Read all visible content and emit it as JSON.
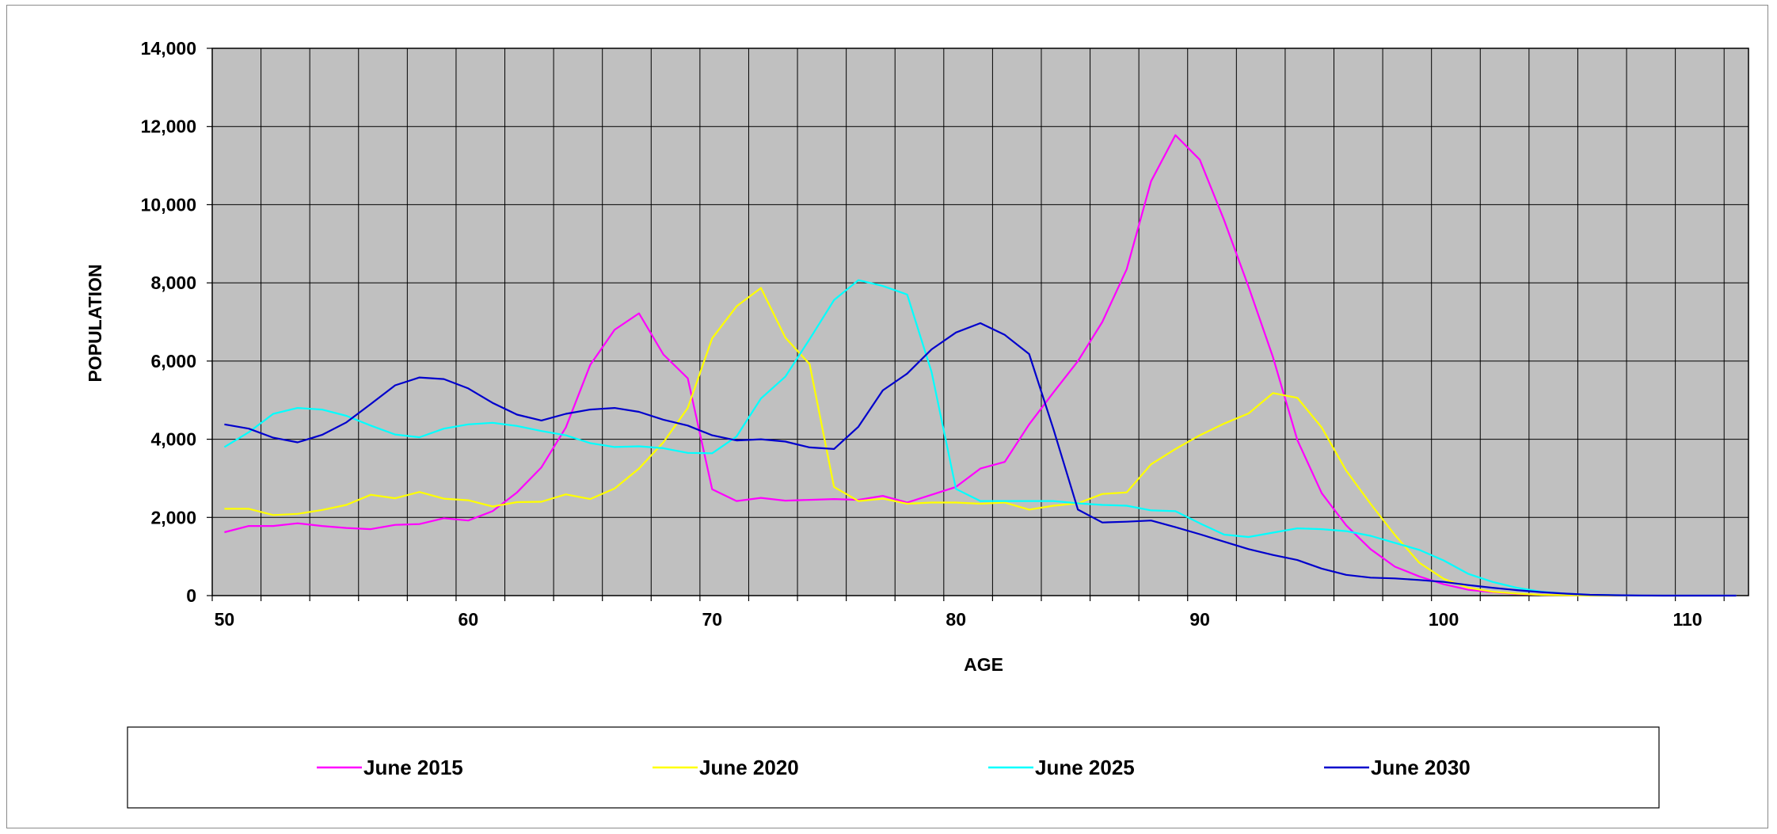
{
  "chart_data": {
    "type": "line",
    "xlabel": "AGE",
    "ylabel": "POPULATION",
    "xlim": [
      49.5,
      112.5
    ],
    "ylim": [
      0,
      14000
    ],
    "x_ticks": [
      50,
      60,
      70,
      80,
      90,
      100,
      110
    ],
    "x_tick_labels": [
      "50",
      "60",
      "70",
      "80",
      "90",
      "100",
      "110"
    ],
    "y_ticks": [
      0,
      2000,
      4000,
      6000,
      8000,
      10000,
      12000,
      14000
    ],
    "y_tick_labels": [
      "0",
      "2,000",
      "4,000",
      "6,000",
      "8,000",
      "10,000",
      "12,000",
      "14,000"
    ],
    "grid": true,
    "plot_background": "#c0c0c0",
    "legend_position": "bottom",
    "x": [
      50,
      51,
      52,
      53,
      54,
      55,
      56,
      57,
      58,
      59,
      60,
      61,
      62,
      63,
      64,
      65,
      66,
      67,
      68,
      69,
      70,
      71,
      72,
      73,
      74,
      75,
      76,
      77,
      78,
      79,
      80,
      81,
      82,
      83,
      84,
      85,
      86,
      87,
      88,
      89,
      90,
      91,
      92,
      93,
      94,
      95,
      96,
      97,
      98,
      99,
      100,
      101,
      102,
      103,
      104,
      105,
      106,
      107,
      108,
      109,
      110,
      111,
      112
    ],
    "series": [
      {
        "name": "June 2015",
        "color": "#ff00ff",
        "values": [
          1620,
          1780,
          1780,
          1850,
          1780,
          1730,
          1700,
          1810,
          1830,
          1980,
          1920,
          2160,
          2640,
          3280,
          4300,
          5900,
          6800,
          7220,
          6170,
          5560,
          2720,
          2420,
          2500,
          2430,
          2450,
          2470,
          2450,
          2550,
          2380,
          2580,
          2780,
          3250,
          3420,
          4380,
          5200,
          6000,
          7000,
          8350,
          10600,
          11780,
          11150,
          9600,
          7900,
          6100,
          3980,
          2620,
          1800,
          1190,
          740,
          490,
          290,
          150,
          90,
          40,
          20,
          10,
          0,
          0,
          0,
          0,
          0,
          0,
          0
        ]
      },
      {
        "name": "June 2020",
        "color": "#ffff00",
        "values": [
          2220,
          2220,
          2060,
          2090,
          2190,
          2320,
          2580,
          2490,
          2650,
          2480,
          2440,
          2280,
          2390,
          2400,
          2590,
          2470,
          2740,
          3250,
          3920,
          4800,
          6580,
          7400,
          7870,
          6600,
          5920,
          2780,
          2420,
          2480,
          2350,
          2380,
          2380,
          2350,
          2380,
          2200,
          2300,
          2360,
          2600,
          2640,
          3360,
          3750,
          4100,
          4400,
          4660,
          5180,
          5060,
          4300,
          3200,
          2350,
          1550,
          840,
          430,
          200,
          100,
          50,
          20,
          10,
          0,
          0,
          0,
          0,
          0,
          0,
          0
        ]
      },
      {
        "name": "June 2025",
        "color": "#00ffff",
        "values": [
          3800,
          4180,
          4650,
          4800,
          4760,
          4600,
          4350,
          4120,
          4050,
          4270,
          4380,
          4420,
          4340,
          4210,
          4100,
          3900,
          3800,
          3820,
          3770,
          3650,
          3640,
          4070,
          5040,
          5600,
          6560,
          7560,
          8070,
          7920,
          7700,
          5720,
          2730,
          2420,
          2420,
          2420,
          2420,
          2360,
          2320,
          2300,
          2180,
          2160,
          1850,
          1560,
          1500,
          1610,
          1720,
          1700,
          1650,
          1530,
          1350,
          1170,
          900,
          560,
          350,
          200,
          100,
          50,
          20,
          10,
          0,
          0,
          0,
          0,
          0
        ]
      },
      {
        "name": "June 2030",
        "color": "#0000cc",
        "values": [
          4380,
          4270,
          4040,
          3920,
          4110,
          4430,
          4900,
          5380,
          5580,
          5540,
          5300,
          4930,
          4630,
          4480,
          4650,
          4760,
          4800,
          4700,
          4500,
          4350,
          4100,
          3970,
          4000,
          3940,
          3790,
          3750,
          4320,
          5250,
          5680,
          6300,
          6730,
          6970,
          6670,
          6180,
          4250,
          2200,
          1870,
          1890,
          1920,
          1750,
          1570,
          1380,
          1190,
          1040,
          910,
          690,
          530,
          460,
          440,
          400,
          350,
          270,
          200,
          140,
          90,
          50,
          20,
          10,
          5,
          0,
          0,
          0,
          0
        ]
      }
    ]
  }
}
